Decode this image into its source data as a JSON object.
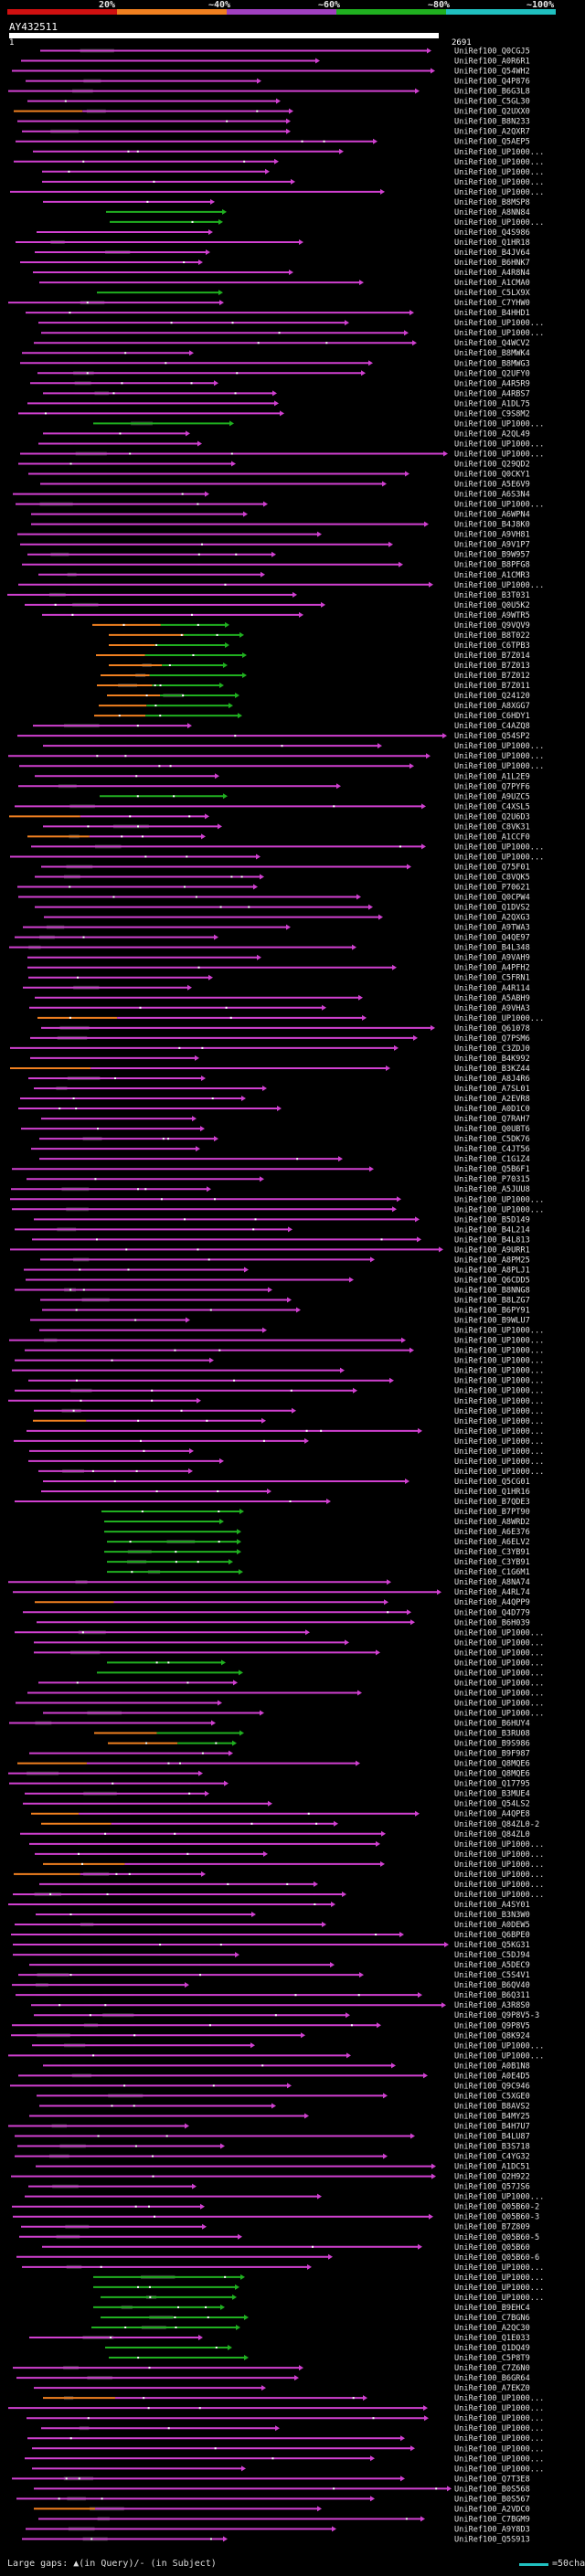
{
  "scale": {
    "labels": [
      "20%",
      "~40%",
      "~60%",
      "~80%",
      "~100%"
    ],
    "colors": [
      "#d01010",
      "#f08020",
      "#a040c0",
      "#20b020",
      "#20c0c0"
    ]
  },
  "query": {
    "name": "AY432511",
    "start": "1",
    "end": "2691"
  },
  "colors": {
    "magenta": "#d040d0",
    "green": "#20b020",
    "orange": "#f08020",
    "gap": "#333333"
  },
  "hits": [
    "UniRef100_Q0CGJ5",
    "UniRef100_A0R6R1",
    "UniRef100_Q54WH2",
    "UniRef100_Q4P876",
    "UniRef100_B6G3L8",
    "UniRef100_C5GL30",
    "UniRef100_Q2UXX0",
    "UniRef100_B8N233",
    "UniRef100_A2QXR7",
    "UniRef100_Q5AEP5",
    "UniRef100_UP1000...",
    "UniRef100_UP1000...",
    "UniRef100_UP1000...",
    "UniRef100_UP1000...",
    "UniRef100_UP1000...",
    "UniRef100_B8MSP8",
    "UniRef100_A8NN84",
    "UniRef100_UP1000...",
    "UniRef100_Q4S986",
    "UniRef100_Q1HR18",
    "UniRef100_B4JV64",
    "UniRef100_B6HNK7",
    "UniRef100_A4R8N4",
    "UniRef100_A1CMA0",
    "UniRef100_C5LX9X",
    "UniRef100_C7YHW0",
    "UniRef100_B4HHD1",
    "UniRef100_UP1000...",
    "UniRef100_UP1000...",
    "UniRef100_Q4WCV2",
    "UniRef100_B8MWK4",
    "UniRef100_B8MWG3",
    "UniRef100_Q2UFY0",
    "UniRef100_A4R5R9",
    "UniRef100_A4RBS7",
    "UniRef100_A1DL75",
    "UniRef100_C9S8M2",
    "UniRef100_UP1000...",
    "UniRef100_A2QL49",
    "UniRef100_UP1000...",
    "UniRef100_UP1000...",
    "UniRef100_Q29QD2",
    "UniRef100_Q0CKY1",
    "UniRef100_A5E6V9",
    "UniRef100_A6S3N4",
    "UniRef100_UP1000...",
    "UniRef100_A6WPN4",
    "UniRef100_B4J8K0",
    "UniRef100_A9VH81",
    "UniRef100_A9V1P7",
    "UniRef100_B9W957",
    "UniRef100_B8PFG8",
    "UniRef100_A1CMR3",
    "UniRef100_UP1000...",
    "UniRef100_B3T031",
    "UniRef100_Q0U5K2",
    "UniRef100_A9WTR5",
    "UniRef100_Q9VQV9",
    "UniRef100_B8T022",
    "UniRef100_C6TPB3",
    "UniRef100_B7Z014",
    "UniRef100_B7Z013",
    "UniRef100_B7Z012",
    "UniRef100_B7Z011",
    "UniRef100_Q24120",
    "UniRef100_A8XGG7",
    "UniRef100_C6HDY1",
    "UniRef100_C4AZQ8",
    "UniRef100_Q54SP2",
    "UniRef100_UP1000...",
    "UniRef100_UP1000...",
    "UniRef100_UP1000...",
    "UniRef100_A1L2E9",
    "UniRef100_Q7PYF6",
    "UniRef100_A9UZC5",
    "UniRef100_C4XSL5",
    "UniRef100_Q2U6D3",
    "UniRef100_C8VK31",
    "UniRef100_A1CCF0",
    "UniRef100_UP1000...",
    "UniRef100_UP1000...",
    "UniRef100_Q75F01",
    "UniRef100_C8VQK5",
    "UniRef100_P70621",
    "UniRef100_Q0CPW4",
    "UniRef100_Q1DVS2",
    "UniRef100_A2QXG3",
    "UniRef100_A9TWA3",
    "UniRef100_Q4QE97",
    "UniRef100_B4L348",
    "UniRef100_A9VAH9",
    "UniRef100_A4PFH2",
    "UniRef100_C5FRN1",
    "UniRef100_A4R114",
    "UniRef100_A5ABH9",
    "UniRef100_A9VHA3",
    "UniRef100_UP1000...",
    "UniRef100_Q61078",
    "UniRef100_Q7PSM6",
    "UniRef100_C3ZDJ0",
    "UniRef100_B4K992",
    "UniRef100_B3KZ44",
    "UniRef100_A8J4R6",
    "UniRef100_A7SL01",
    "UniRef100_A2EVR8",
    "UniRef100_A0D1C0",
    "UniRef100_Q7RAH7",
    "UniRef100_Q0UBT6",
    "UniRef100_C5DK76",
    "UniRef100_C4JT56",
    "UniRef100_C1G1Z4",
    "UniRef100_Q5B6F1",
    "UniRef100_P70315",
    "UniRef100_A5JUU8",
    "UniRef100_UP1000...",
    "UniRef100_UP1000...",
    "UniRef100_B5D149",
    "UniRef100_B4L214",
    "UniRef100_B4L813",
    "UniRef100_A9URR1",
    "UniRef100_A8PM25",
    "UniRef100_A8PLJ1",
    "UniRef100_Q6CDD5",
    "UniRef100_B8NNG8",
    "UniRef100_B8LZG7",
    "UniRef100_B6PY91",
    "UniRef100_B9WLU7",
    "UniRef100_UP1000...",
    "UniRef100_UP1000...",
    "UniRef100_UP1000...",
    "UniRef100_UP1000...",
    "UniRef100_UP1000...",
    "UniRef100_UP1000...",
    "UniRef100_UP1000...",
    "UniRef100_UP1000...",
    "UniRef100_UP1000...",
    "UniRef100_UP1000...",
    "UniRef100_UP1000...",
    "UniRef100_UP1000...",
    "UniRef100_UP1000...",
    "UniRef100_UP1000...",
    "UniRef100_UP1000...",
    "UniRef100_Q5CG01",
    "UniRef100_Q1HR16",
    "UniRef100_B7QDE3",
    "UniRef100_B7PT90",
    "UniRef100_A8WRD2",
    "UniRef100_A6E376",
    "UniRef100_A6ELV2",
    "UniRef100_C3YB91",
    "UniRef100_C3YB91",
    "UniRef100_C1G6M1",
    "UniRef100_A8NA74",
    "UniRef100_A4RL74",
    "UniRef100_A4QPP9",
    "UniRef100_Q4D779",
    "UniRef100_B6H039",
    "UniRef100_UP1000...",
    "UniRef100_UP1000...",
    "UniRef100_UP1000...",
    "UniRef100_UP1000...",
    "UniRef100_UP1000...",
    "UniRef100_UP1000...",
    "UniRef100_UP1000...",
    "UniRef100_UP1000...",
    "UniRef100_UP1000...",
    "UniRef100_B6HUY4",
    "UniRef100_B3RU08",
    "UniRef100_B9S986",
    "UniRef100_B9F987",
    "UniRef100_Q8MQE6",
    "UniRef100_Q8MQE6",
    "UniRef100_Q17795",
    "UniRef100_B3MUE4",
    "UniRef100_Q54LS2",
    "UniRef100_A4QPE8",
    "UniRef100_Q84ZL0-2",
    "UniRef100_Q84ZL0",
    "UniRef100_UP1000...",
    "UniRef100_UP1000...",
    "UniRef100_UP1000...",
    "UniRef100_UP1000...",
    "UniRef100_UP1000...",
    "UniRef100_UP1000...",
    "UniRef100_A4SY01",
    "UniRef100_B3N3W0",
    "UniRef100_A0DEW5",
    "UniRef100_Q6BPE0",
    "UniRef100_Q5KG31",
    "UniRef100_C5DJ94",
    "UniRef100_A5DEC9",
    "UniRef100_C5S4V1",
    "UniRef100_B6QV40",
    "UniRef100_B6Q311",
    "UniRef100_A3R8S0",
    "UniRef100_Q9P8V5-3",
    "UniRef100_Q9P8V5",
    "UniRef100_Q8K924",
    "UniRef100_UP1000...",
    "UniRef100_UP1000...",
    "UniRef100_A0B1N8",
    "UniRef100_A0E4D5",
    "UniRef100_Q9C946",
    "UniRef100_C5XGE0",
    "UniRef100_B8AVS2",
    "UniRef100_B4MY25",
    "UniRef100_B4H7U7",
    "UniRef100_B4LU87",
    "UniRef100_B3S718",
    "UniRef100_C4YG32",
    "UniRef100_A1DC51",
    "UniRef100_Q2H922",
    "UniRef100_Q57JS6",
    "UniRef100_UP1000...",
    "UniRef100_Q05B60-2",
    "UniRef100_Q05B60-3",
    "UniRef100_B7Z809",
    "UniRef100_Q05B60-5",
    "UniRef100_Q05B60",
    "UniRef100_Q05B60-6",
    "UniRef100_UP1000...",
    "UniRef100_UP1000...",
    "UniRef100_UP1000...",
    "UniRef100_UP1000...",
    "UniRef100_B9EHC4",
    "UniRef100_C7BGN6",
    "UniRef100_A2QC30",
    "UniRef100_Q1E033",
    "UniRef100_Q1DQ49",
    "UniRef100_C5P8T9",
    "UniRef100_C7Z6N0",
    "UniRef100_B6GR64",
    "UniRef100_A7EKZ0",
    "UniRef100_UP1000...",
    "UniRef100_UP1000...",
    "UniRef100_UP1000...",
    "UniRef100_UP1000...",
    "UniRef100_UP1000...",
    "UniRef100_UP1000...",
    "UniRef100_UP1000...",
    "UniRef100_UP1000...",
    "UniRef100_Q7T3E8",
    "UniRef100_B0S568",
    "UniRef100_B0S567",
    "UniRef100_A2VDC0",
    "UniRef100_C7BGM9",
    "UniRef100_A9Y8D3",
    "UniRef100_Q5S913"
  ],
  "legend": {
    "gaps": "Large gaps: ▲(in Query)/- (in Subject)",
    "key": "=50char."
  }
}
